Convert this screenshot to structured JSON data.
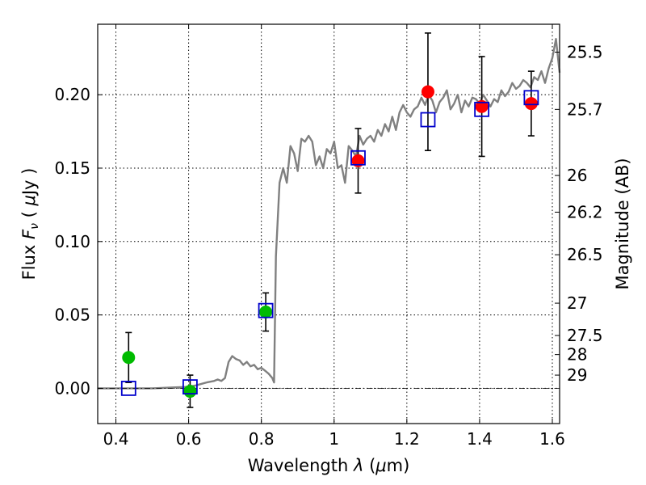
{
  "chart_data": {
    "type": "scatter",
    "xlabel": "Wavelength  λ (μm)",
    "ylabel": "Flux  Fν  ( μJy )",
    "right_ylabel": "Magnitude (AB)",
    "xlim": [
      0.35,
      1.62
    ],
    "ylim": [
      -0.024,
      0.248
    ],
    "x_ticks": [
      0.4,
      0.6,
      0.8,
      1.0,
      1.2,
      1.4,
      1.6
    ],
    "x_tick_labels": [
      "0.4",
      "0.6",
      "0.8",
      "1",
      "1.2",
      "1.4",
      "1.6"
    ],
    "y_ticks": [
      0.0,
      0.05,
      0.1,
      0.15,
      0.2
    ],
    "y_tick_labels": [
      "0.00",
      "0.05",
      "0.10",
      "0.15",
      "0.20"
    ],
    "right_ticks": [
      {
        "flux": 0.229,
        "label": "25.5"
      },
      {
        "flux": 0.19,
        "label": "25.7"
      },
      {
        "flux": 0.145,
        "label": "26"
      },
      {
        "flux": 0.12,
        "label": "26.2"
      },
      {
        "flux": 0.091,
        "label": "26.5"
      },
      {
        "flux": 0.058,
        "label": "27"
      },
      {
        "flux": 0.036,
        "label": "27.5"
      },
      {
        "flux": 0.023,
        "label": "28"
      },
      {
        "flux": 0.009,
        "label": "29"
      }
    ],
    "grid": true,
    "colors": {
      "model": "#808080",
      "detection": "#ff0000",
      "blue_band": "#00bb00",
      "model_photometry": "#0000cc",
      "errorbar": "#000000",
      "zero_line": "#000000"
    },
    "series": [
      {
        "role": "model",
        "style": "line",
        "x": [
          0.35,
          0.4,
          0.45,
          0.5,
          0.55,
          0.6,
          0.62,
          0.65,
          0.67,
          0.68,
          0.69,
          0.7,
          0.71,
          0.72,
          0.73,
          0.74,
          0.75,
          0.76,
          0.77,
          0.78,
          0.79,
          0.8,
          0.81,
          0.82,
          0.83,
          0.835,
          0.84,
          0.85,
          0.86,
          0.87,
          0.88,
          0.89,
          0.9,
          0.91,
          0.92,
          0.93,
          0.94,
          0.95,
          0.96,
          0.97,
          0.98,
          0.99,
          1.0,
          1.01,
          1.02,
          1.03,
          1.04,
          1.05,
          1.06,
          1.07,
          1.08,
          1.09,
          1.1,
          1.11,
          1.12,
          1.13,
          1.14,
          1.15,
          1.16,
          1.17,
          1.18,
          1.19,
          1.2,
          1.21,
          1.22,
          1.23,
          1.24,
          1.25,
          1.26,
          1.27,
          1.28,
          1.29,
          1.3,
          1.31,
          1.32,
          1.33,
          1.34,
          1.35,
          1.36,
          1.37,
          1.38,
          1.39,
          1.4,
          1.41,
          1.42,
          1.43,
          1.44,
          1.45,
          1.46,
          1.47,
          1.48,
          1.49,
          1.5,
          1.51,
          1.52,
          1.53,
          1.54,
          1.55,
          1.56,
          1.57,
          1.58,
          1.59,
          1.6,
          1.61,
          1.62
        ],
        "y": [
          0.0,
          0.0,
          0.0,
          0.0,
          0.0005,
          0.001,
          0.002,
          0.004,
          0.005,
          0.006,
          0.005,
          0.007,
          0.018,
          0.022,
          0.02,
          0.019,
          0.016,
          0.018,
          0.015,
          0.016,
          0.013,
          0.014,
          0.012,
          0.01,
          0.007,
          0.004,
          0.09,
          0.14,
          0.15,
          0.14,
          0.165,
          0.16,
          0.148,
          0.17,
          0.168,
          0.172,
          0.168,
          0.152,
          0.158,
          0.15,
          0.163,
          0.16,
          0.168,
          0.15,
          0.152,
          0.14,
          0.165,
          0.162,
          0.158,
          0.172,
          0.166,
          0.17,
          0.172,
          0.168,
          0.176,
          0.172,
          0.18,
          0.175,
          0.185,
          0.176,
          0.188,
          0.193,
          0.188,
          0.185,
          0.19,
          0.192,
          0.198,
          0.193,
          0.2,
          0.196,
          0.188,
          0.195,
          0.198,
          0.203,
          0.19,
          0.194,
          0.2,
          0.188,
          0.196,
          0.192,
          0.198,
          0.197,
          0.194,
          0.2,
          0.196,
          0.192,
          0.197,
          0.195,
          0.203,
          0.199,
          0.202,
          0.208,
          0.204,
          0.206,
          0.21,
          0.208,
          0.205,
          0.212,
          0.21,
          0.216,
          0.208,
          0.218,
          0.225,
          0.238,
          0.215
        ]
      },
      {
        "role": "detection",
        "style": "marker-circle",
        "x": [
          1.066,
          1.258,
          1.406,
          1.542
        ],
        "y": [
          0.155,
          0.202,
          0.192,
          0.194
        ],
        "err": [
          0.022,
          0.04,
          0.034,
          0.022
        ]
      },
      {
        "role": "blue_band",
        "style": "marker-circle",
        "x": [
          0.435,
          0.604,
          0.812
        ],
        "y": [
          0.021,
          -0.002,
          0.052
        ],
        "err": [
          0.017,
          0.011,
          0.013
        ]
      },
      {
        "role": "model_photometry",
        "style": "marker-square",
        "x": [
          0.435,
          0.604,
          0.812,
          1.066,
          1.258,
          1.406,
          1.542
        ],
        "y": [
          0.0,
          0.001,
          0.053,
          0.157,
          0.183,
          0.19,
          0.198
        ]
      }
    ]
  }
}
